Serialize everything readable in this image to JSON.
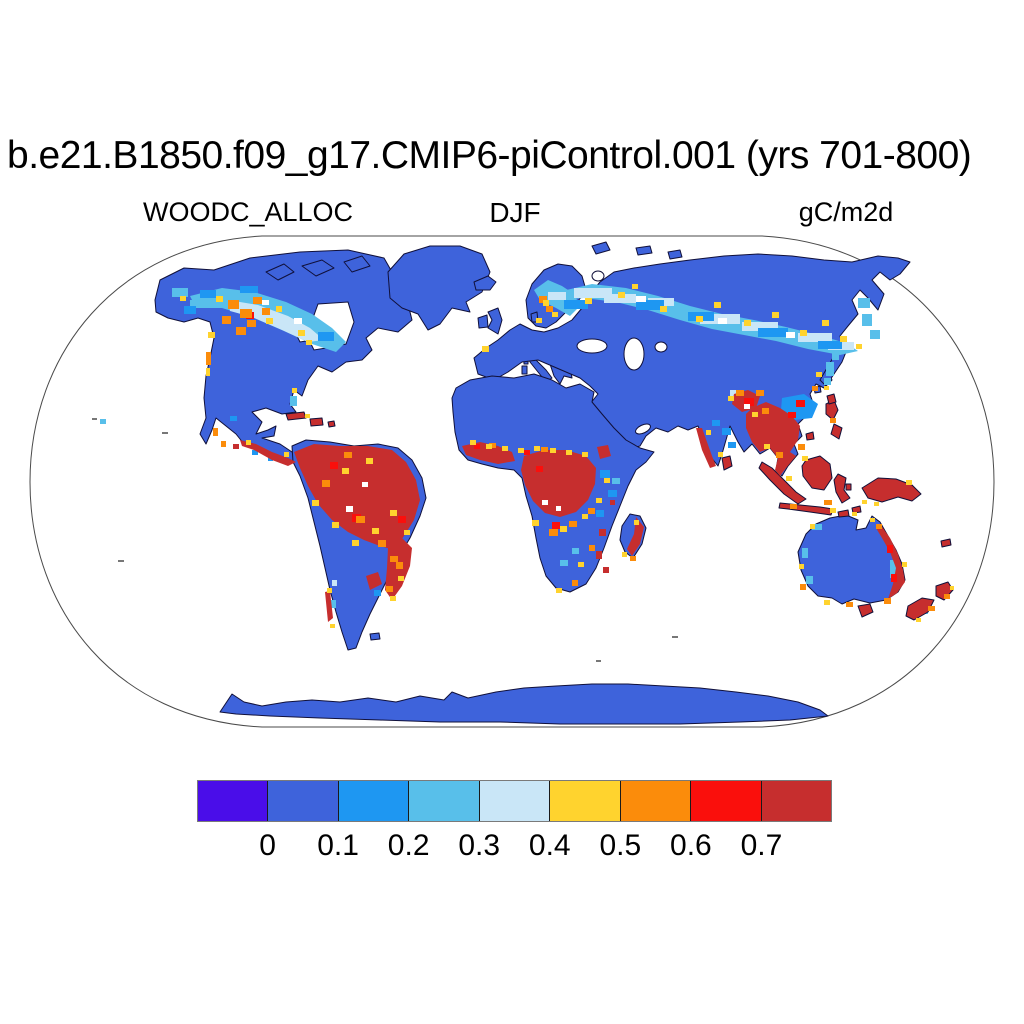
{
  "title": "b.e21.B1850.f09_g17.CMIP6-piControl.001 (yrs 701-800)",
  "subtitles": {
    "left": "WOODC_ALLOC",
    "center": "DJF",
    "right": "gC/m2d"
  },
  "colorbar": {
    "colors": [
      "#4A0DE9",
      "#3E63DB",
      "#1E97F2",
      "#58BFEA",
      "#C9E6F7",
      "#FFD32E",
      "#FB8C0B",
      "#FA0F0C",
      "#C62E2E"
    ],
    "tick_labels": [
      "0",
      "0.1",
      "0.2",
      "0.3",
      "0.4",
      "0.5",
      "0.6",
      "0.7"
    ]
  },
  "map": {
    "projection": "Robinson",
    "colors": {
      "ocean": "#FFFFFF",
      "boundary": "#4A4A4A",
      "outline": "#10103A",
      "land_low": "#3E63DB",
      "band_02": "#1E97F2",
      "band_03": "#58BFEA",
      "band_04": "#C9E6F7",
      "band_05": "#FFD32E",
      "band_06": "#FB8C0B",
      "band_07": "#FA0F0C",
      "band_max": "#C62E2E",
      "minor_island": "#777777"
    }
  }
}
